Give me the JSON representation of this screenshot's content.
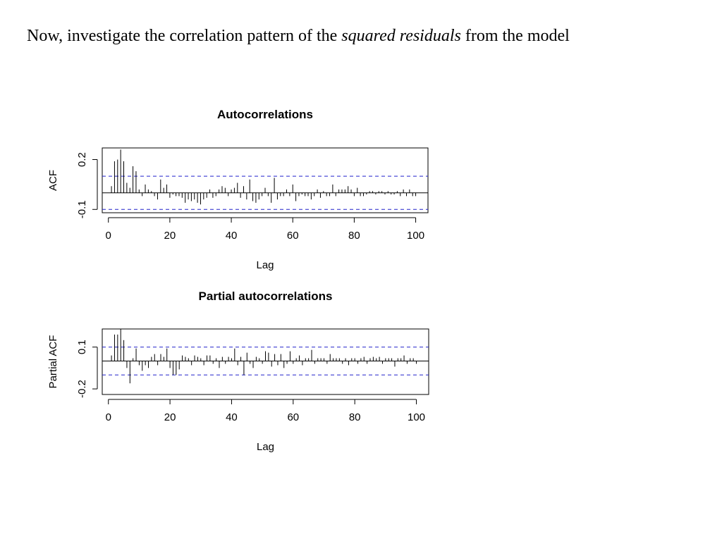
{
  "slide": {
    "text_before": "Now, investigate the correlation pattern of the ",
    "text_emph": "squared residuals",
    "text_after": " from the model"
  },
  "chart_data": [
    {
      "type": "bar",
      "title": "Autocorrelations",
      "xlabel": "Lag",
      "ylabel": "ACF",
      "xlim": [
        -2,
        104
      ],
      "ylim": [
        -0.12,
        0.27
      ],
      "xticks": [
        0,
        20,
        40,
        60,
        80,
        100
      ],
      "yticks": [
        -0.1,
        0.2
      ],
      "ytick_labels": [
        "-0.1",
        "0.2"
      ],
      "conf_band": [
        0.1,
        -0.1
      ],
      "x": [
        1,
        2,
        3,
        4,
        5,
        6,
        7,
        8,
        9,
        10,
        11,
        12,
        13,
        14,
        15,
        16,
        17,
        18,
        19,
        20,
        21,
        22,
        23,
        24,
        25,
        26,
        27,
        28,
        29,
        30,
        31,
        32,
        33,
        34,
        35,
        36,
        37,
        38,
        39,
        40,
        41,
        42,
        43,
        44,
        45,
        46,
        47,
        48,
        49,
        50,
        51,
        52,
        53,
        54,
        55,
        56,
        57,
        58,
        59,
        60,
        61,
        62,
        63,
        64,
        65,
        66,
        67,
        68,
        69,
        70,
        71,
        72,
        73,
        74,
        75,
        76,
        77,
        78,
        79,
        80,
        81,
        82,
        83,
        84,
        85,
        86,
        87,
        88,
        89,
        90,
        91,
        92,
        93,
        94,
        95,
        96,
        97,
        98,
        99,
        100
      ],
      "values": [
        0.04,
        0.19,
        0.2,
        0.26,
        0.19,
        0.06,
        0.03,
        0.16,
        0.13,
        0.02,
        -0.02,
        0.05,
        0.02,
        0.01,
        -0.02,
        -0.04,
        0.08,
        0.03,
        0.05,
        -0.03,
        -0.01,
        -0.02,
        -0.02,
        -0.03,
        -0.06,
        -0.04,
        -0.05,
        -0.04,
        -0.06,
        -0.07,
        -0.04,
        -0.03,
        0.02,
        -0.03,
        -0.02,
        0.02,
        0.04,
        0.03,
        -0.02,
        0.02,
        0.03,
        0.06,
        -0.03,
        0.04,
        -0.04,
        0.08,
        -0.05,
        -0.06,
        -0.04,
        -0.02,
        0.03,
        -0.02,
        -0.06,
        0.09,
        -0.04,
        -0.02,
        -0.02,
        0.02,
        -0.02,
        0.05,
        -0.05,
        -0.02,
        -0.01,
        -0.02,
        -0.02,
        -0.04,
        -0.02,
        0.02,
        -0.03,
        0.01,
        -0.02,
        -0.02,
        0.05,
        -0.02,
        0.02,
        0.02,
        0.02,
        0.04,
        0.02,
        -0.02,
        0.03,
        -0.02,
        -0.02,
        -0.01,
        0.01,
        0.01,
        -0.01,
        0.01,
        0.01,
        -0.01,
        0.01,
        -0.01,
        -0.01,
        0.01,
        -0.02,
        0.02,
        -0.02,
        0.02,
        -0.02,
        -0.02
      ]
    },
    {
      "type": "bar",
      "title": "Partial autocorrelations",
      "xlabel": "Lag",
      "ylabel": "Partial ACF",
      "xlim": [
        -2,
        104
      ],
      "ylim": [
        -0.24,
        0.23
      ],
      "xticks": [
        0,
        20,
        40,
        60,
        80,
        100
      ],
      "yticks": [
        -0.2,
        0.1
      ],
      "ytick_labels": [
        "-0.2",
        "0.1"
      ],
      "conf_band": [
        0.1,
        -0.1
      ],
      "x": [
        1,
        2,
        3,
        4,
        5,
        6,
        7,
        8,
        9,
        10,
        11,
        12,
        13,
        14,
        15,
        16,
        17,
        18,
        19,
        20,
        21,
        22,
        23,
        24,
        25,
        26,
        27,
        28,
        29,
        30,
        31,
        32,
        33,
        34,
        35,
        36,
        37,
        38,
        39,
        40,
        41,
        42,
        43,
        44,
        45,
        46,
        47,
        48,
        49,
        50,
        51,
        52,
        53,
        54,
        55,
        56,
        57,
        58,
        59,
        60,
        61,
        62,
        63,
        64,
        65,
        66,
        67,
        68,
        69,
        70,
        71,
        72,
        73,
        74,
        75,
        76,
        77,
        78,
        79,
        80,
        81,
        82,
        83,
        84,
        85,
        86,
        87,
        88,
        89,
        90,
        91,
        92,
        93,
        94,
        95,
        96,
        97,
        98,
        99,
        100
      ],
      "values": [
        0.04,
        0.19,
        0.19,
        0.23,
        0.15,
        -0.05,
        -0.16,
        0.02,
        0.09,
        -0.03,
        -0.07,
        -0.03,
        -0.05,
        0.03,
        0.05,
        -0.03,
        0.05,
        0.03,
        0.09,
        -0.05,
        -0.1,
        -0.1,
        -0.06,
        0.04,
        0.03,
        0.02,
        -0.03,
        0.04,
        0.03,
        0.02,
        -0.03,
        0.04,
        0.04,
        -0.02,
        0.02,
        -0.05,
        0.03,
        -0.02,
        0.03,
        0.02,
        0.09,
        -0.03,
        0.03,
        -0.1,
        0.06,
        -0.02,
        -0.05,
        0.03,
        0.02,
        -0.02,
        0.07,
        0.06,
        -0.04,
        0.05,
        -0.03,
        0.05,
        -0.05,
        -0.02,
        0.07,
        -0.02,
        0.02,
        0.04,
        -0.03,
        0.02,
        0.02,
        0.08,
        -0.02,
        0.02,
        0.02,
        0.02,
        -0.02,
        0.05,
        0.02,
        0.02,
        0.02,
        -0.02,
        0.02,
        -0.03,
        0.02,
        0.02,
        -0.02,
        0.02,
        0.03,
        -0.02,
        0.02,
        0.03,
        0.02,
        0.03,
        -0.02,
        0.02,
        0.02,
        0.02,
        -0.04,
        0.02,
        0.02,
        0.04,
        -0.02,
        0.02,
        0.02,
        -0.02
      ]
    }
  ]
}
